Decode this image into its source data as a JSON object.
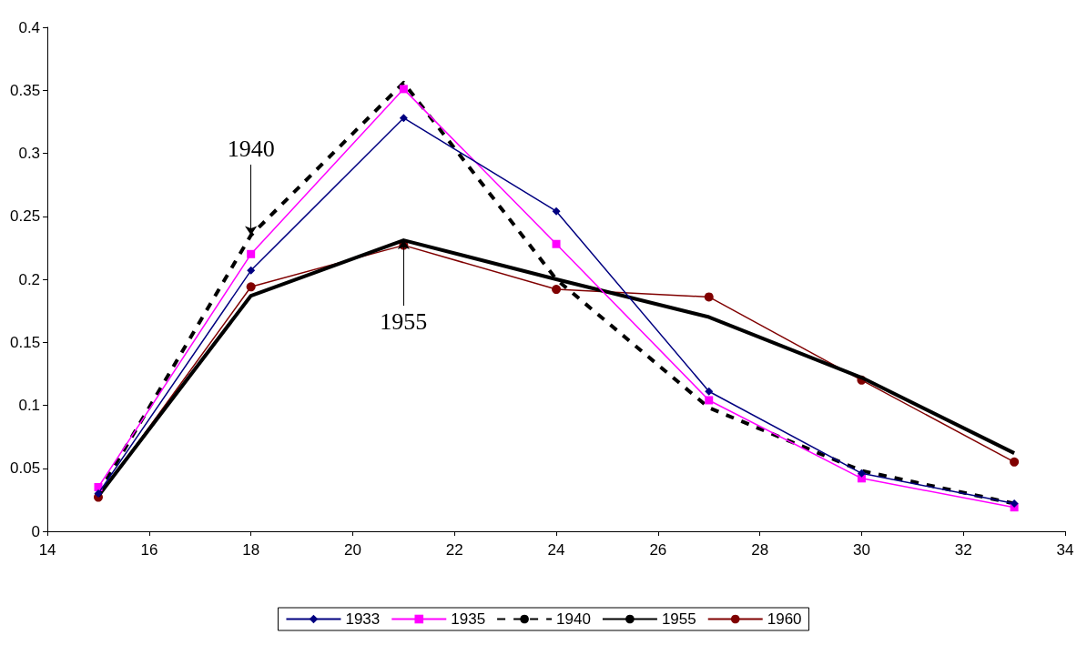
{
  "chart_data": {
    "type": "line",
    "x": [
      15,
      18,
      21,
      24,
      27,
      30,
      33
    ],
    "series": [
      {
        "name": "1933",
        "color": "#000080",
        "marker": "diamond",
        "line_style": "solid",
        "values": [
          0.03,
          0.207,
          0.328,
          0.254,
          0.111,
          0.046,
          0.022
        ]
      },
      {
        "name": "1935",
        "color": "#ff00ff",
        "marker": "square",
        "line_style": "solid",
        "values": [
          0.035,
          0.22,
          0.351,
          0.228,
          0.104,
          0.042,
          0.019
        ]
      },
      {
        "name": "1940",
        "color": "#000000",
        "marker": "none",
        "line_style": "dashed",
        "values": [
          0.03,
          0.235,
          0.356,
          0.2,
          0.098,
          0.048,
          0.022
        ]
      },
      {
        "name": "1955",
        "color": "#000000",
        "marker": "none",
        "line_style": "solid",
        "values": [
          0.028,
          0.187,
          0.231,
          0.2,
          0.17,
          0.122,
          0.062
        ]
      },
      {
        "name": "1960",
        "color": "#800000",
        "marker": "circle",
        "line_style": "solid",
        "values": [
          0.027,
          0.194,
          0.227,
          0.192,
          0.186,
          0.12,
          0.055
        ]
      }
    ],
    "xlim": [
      14,
      34
    ],
    "xticks": [
      14,
      16,
      18,
      20,
      22,
      24,
      26,
      28,
      30,
      32,
      34
    ],
    "ylim": [
      0,
      0.4
    ],
    "yticks": [
      0,
      0.05,
      0.1,
      0.15,
      0.2,
      0.25,
      0.3,
      0.35,
      0.4
    ],
    "grid": false,
    "legend": "bottom",
    "annotations": [
      {
        "text": "1940",
        "x": 18,
        "y": 0.235
      },
      {
        "text": "1955",
        "x": 21,
        "y": 0.231
      }
    ]
  }
}
